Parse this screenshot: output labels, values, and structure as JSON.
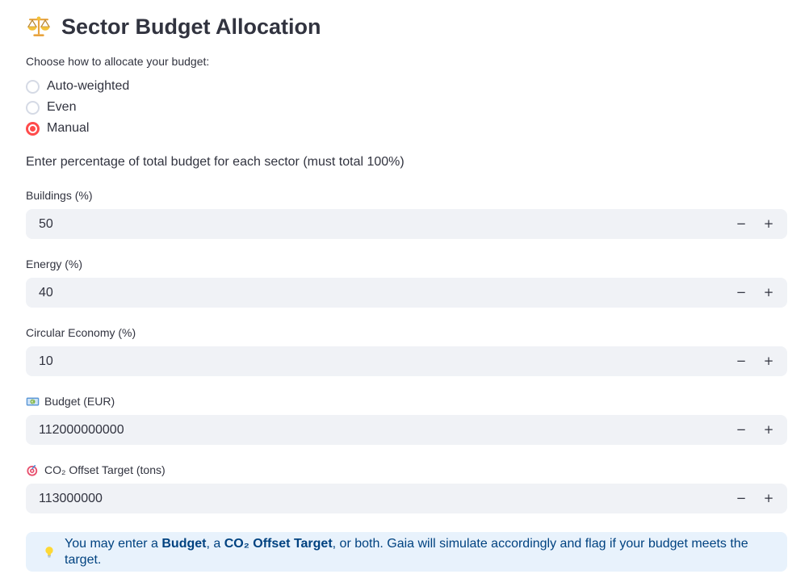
{
  "page": {
    "title": "Sector Budget Allocation",
    "title_icon": "balance-scale"
  },
  "allocation": {
    "prompt": "Choose how to allocate your budget:",
    "options": [
      {
        "label": "Auto-weighted",
        "selected": false
      },
      {
        "label": "Even",
        "selected": false
      },
      {
        "label": "Manual",
        "selected": true
      }
    ]
  },
  "instruction": "Enter percentage of total budget for each sector (must total 100%)",
  "fields": [
    {
      "label": "Buildings (%)",
      "value": "50",
      "icon": ""
    },
    {
      "label": "Energy (%)",
      "value": "40",
      "icon": ""
    },
    {
      "label": "Circular Economy (%)",
      "value": "10",
      "icon": ""
    },
    {
      "label": "Budget (EUR)",
      "value": "112000000000",
      "icon": "euro-banknote"
    },
    {
      "label": "CO₂ Offset Target (tons)",
      "value": "113000000",
      "icon": "dartboard-target"
    }
  ],
  "stepper": {
    "decrement": "−",
    "increment": "+"
  },
  "info": {
    "icon": "lightbulb",
    "segments": [
      {
        "text": "You may enter a ",
        "bold": false
      },
      {
        "text": "Budget",
        "bold": true
      },
      {
        "text": ", a ",
        "bold": false
      },
      {
        "text": "CO₂ Offset Target",
        "bold": true
      },
      {
        "text": ", or both. Gaia will simulate accordingly and flag if your budget meets the target.",
        "bold": false
      }
    ]
  },
  "colors": {
    "text": "#31333F",
    "accent_red": "#ff4b4b",
    "input_bg": "#f0f2f6",
    "info_bg": "#e8f2fc",
    "info_text": "#004280"
  }
}
